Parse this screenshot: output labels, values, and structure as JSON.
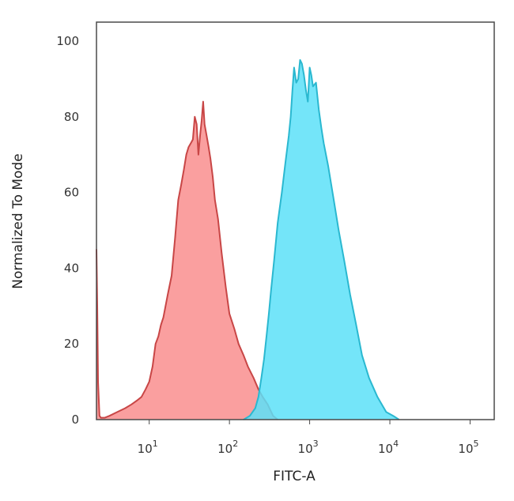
{
  "chart_data": {
    "type": "area",
    "title": "",
    "xlabel": "FITC-A",
    "ylabel": "Normalized To Mode",
    "x_scale": "log",
    "xlim": [
      2.2,
      200000
    ],
    "ylim": [
      0,
      105
    ],
    "grid": false,
    "legend": "none",
    "x_ticks": [
      {
        "value": 10,
        "base": "10",
        "exp": "1"
      },
      {
        "value": 100,
        "base": "10",
        "exp": "2"
      },
      {
        "value": 1000,
        "base": "10",
        "exp": "3"
      },
      {
        "value": 10000,
        "base": "10",
        "exp": "4"
      },
      {
        "value": 100000,
        "base": "10",
        "exp": "5"
      }
    ],
    "y_ticks": [
      0,
      20,
      40,
      60,
      80,
      100
    ],
    "series": [
      {
        "fill": "#f98e8e",
        "stroke": "#c84646",
        "x": [
          2.2,
          2.25,
          2.3,
          2.4,
          2.5,
          2.8,
          3.2,
          4,
          5,
          6,
          7,
          8,
          9,
          10,
          11,
          12,
          13,
          14,
          15,
          17,
          19,
          21,
          23,
          25,
          27,
          29,
          31,
          33,
          35,
          37,
          39,
          41,
          43,
          45,
          47,
          49,
          52,
          55,
          58,
          62,
          66,
          72,
          80,
          90,
          100,
          115,
          130,
          150,
          170,
          200,
          230,
          260,
          300,
          350,
          400
        ],
        "y": [
          45,
          30,
          10,
          1,
          0.5,
          0.5,
          1,
          2,
          3,
          4,
          5,
          6,
          8,
          10,
          14,
          20,
          22,
          25,
          27,
          33,
          38,
          48,
          58,
          62,
          66,
          70,
          72,
          73,
          74,
          80,
          78,
          70,
          75,
          79,
          84,
          78,
          75,
          72,
          69,
          64,
          58,
          53,
          44,
          35,
          28,
          24,
          20,
          17,
          14,
          11,
          8,
          6,
          4,
          1,
          0
        ]
      },
      {
        "fill": "#5ce0f8",
        "stroke": "#2ab8d0",
        "x": [
          150,
          180,
          210,
          230,
          250,
          270,
          290,
          310,
          330,
          360,
          400,
          450,
          500,
          550,
          580,
          610,
          640,
          680,
          720,
          760,
          800,
          850,
          900,
          950,
          1000,
          1050,
          1100,
          1200,
          1300,
          1400,
          1500,
          1700,
          2000,
          2300,
          2700,
          3200,
          3800,
          4500,
          5500,
          7000,
          9000,
          11000,
          13000
        ],
        "y": [
          0,
          1,
          3,
          6,
          11,
          16,
          22,
          28,
          34,
          42,
          52,
          60,
          68,
          75,
          80,
          87,
          93,
          89,
          90,
          95,
          94,
          91,
          87,
          84,
          93,
          91,
          88,
          89,
          82,
          77,
          73,
          67,
          58,
          50,
          42,
          33,
          25,
          17,
          11,
          6,
          2,
          1,
          0
        ]
      }
    ]
  }
}
